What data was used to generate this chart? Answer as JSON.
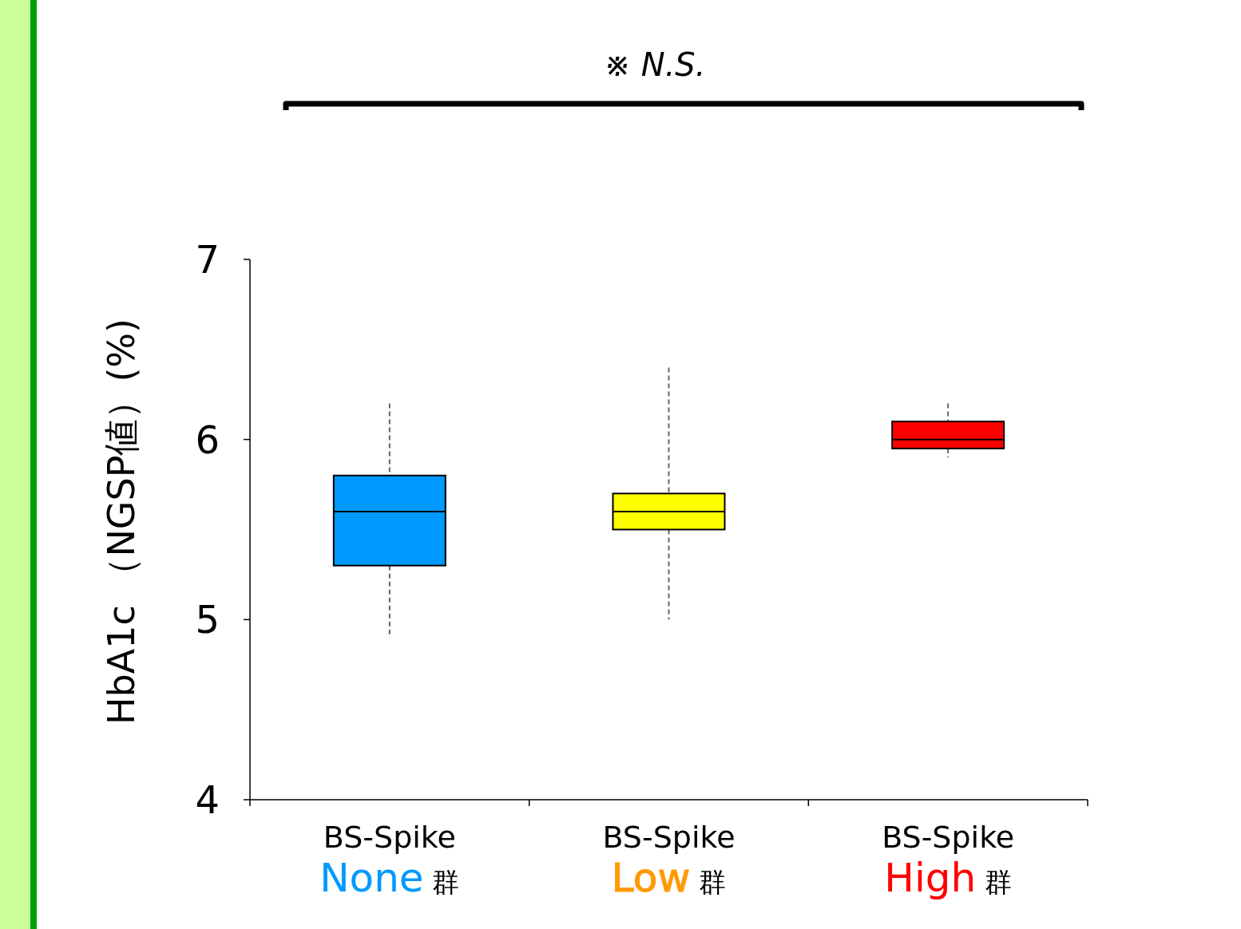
{
  "chart_data": {
    "type": "box",
    "ylabel": "HbA1c （NGSP値）(%)",
    "categories": [
      "BS-Spike\nNone群",
      "BS-Spike\nLow群",
      "BS-Spike\nHigh群"
    ],
    "colors": [
      "#0099ff",
      "#ffff00",
      "#ff0000"
    ],
    "boxes": [
      {
        "low": 4.9,
        "q1": 5.3,
        "median": 5.6,
        "q3": 5.8,
        "high": 6.2
      },
      {
        "low": 5.0,
        "q1": 5.5,
        "median": 5.6,
        "q3": 5.7,
        "high": 6.4
      },
      {
        "low": 5.9,
        "q1": 5.95,
        "median": 6.0,
        "q3": 6.1,
        "high": 6.2
      }
    ],
    "ylim": [
      4,
      7
    ],
    "yticks": [
      4,
      5,
      6,
      7
    ],
    "grid": false,
    "annotations": [
      "※ N.S."
    ]
  }
}
